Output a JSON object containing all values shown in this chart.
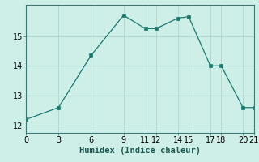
{
  "x": [
    0,
    3,
    6,
    9,
    11,
    12,
    14,
    15,
    17,
    18,
    20,
    21
  ],
  "y": [
    12.2,
    12.6,
    14.35,
    15.7,
    15.25,
    15.25,
    15.6,
    15.65,
    14.0,
    14.0,
    12.6,
    12.6
  ],
  "line_color": "#1a7a6e",
  "marker_color": "#1a7a6e",
  "background_color": "#ceeee8",
  "grid_color": "#b0d8d0",
  "xlabel": "Humidex (Indice chaleur)",
  "xlim": [
    0,
    21
  ],
  "ylim": [
    11.75,
    16.05
  ],
  "xticks": [
    0,
    3,
    6,
    9,
    11,
    12,
    14,
    15,
    17,
    18,
    20,
    21
  ],
  "yticks": [
    12,
    13,
    14,
    15
  ],
  "font_size": 7,
  "xlabel_fontsize": 7.5
}
